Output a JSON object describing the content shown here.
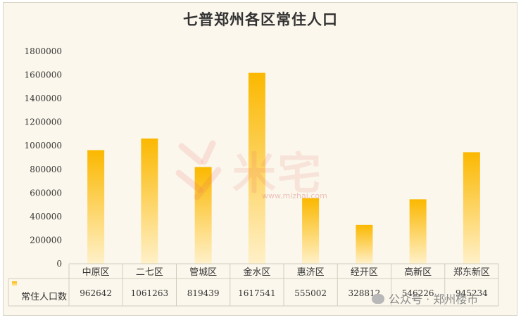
{
  "chart_data": {
    "type": "bar",
    "title": "七普郑州各区常住人口",
    "categories": [
      "中原区",
      "二七区",
      "管城区",
      "金水区",
      "惠济区",
      "经开区",
      "高新区",
      "郑东新区"
    ],
    "series": [
      {
        "name": "常住人口数",
        "values": [
          962642,
          1061263,
          819439,
          1617541,
          555002,
          328812,
          546226,
          945234
        ]
      }
    ],
    "value_labels": [
      "962642",
      "1061263",
      "819439",
      "1617541",
      "555002",
      "328812",
      "546226",
      "945234"
    ],
    "ylim": [
      0,
      1800000
    ],
    "yticks": [
      "0",
      "200000",
      "400000",
      "600000",
      "800000",
      "1000000",
      "1200000",
      "1400000",
      "1600000",
      "1800000"
    ],
    "grid": false,
    "legend": "data-table",
    "colors": {
      "bar_top": "#fbb800",
      "bar_bottom": "#fff0c8",
      "background": "#fbf7ec"
    }
  },
  "watermark": {
    "text": "米宅",
    "url": "www.mizhai.com"
  },
  "source": {
    "text": "公众号 · 郑州楼市",
    "icon": "wechat-icon"
  }
}
